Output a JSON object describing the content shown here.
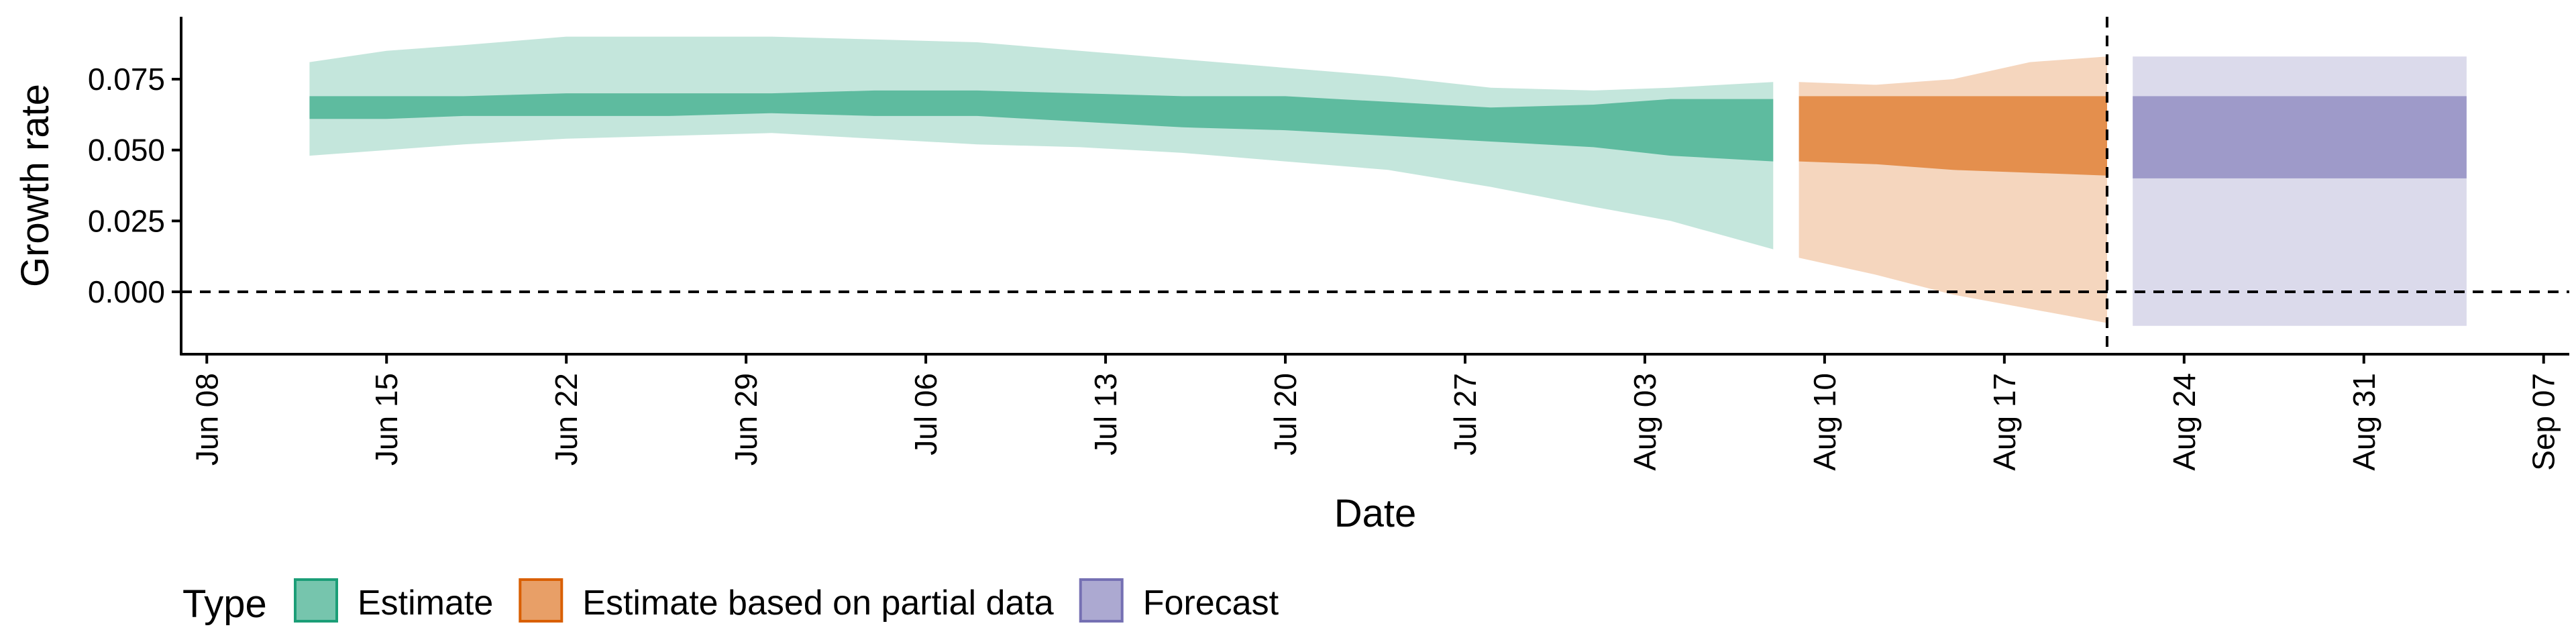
{
  "chart_data": {
    "type": "area",
    "title": "",
    "xlabel": "Date",
    "ylabel": "Growth rate",
    "x_type": "date",
    "xlim": [
      "2020-06-07",
      "2020-09-08"
    ],
    "ylim": [
      -0.022,
      0.097
    ],
    "x_ticks": [
      {
        "date": "2020-06-08",
        "label": "Jun 08"
      },
      {
        "date": "2020-06-15",
        "label": "Jun 15"
      },
      {
        "date": "2020-06-22",
        "label": "Jun 22"
      },
      {
        "date": "2020-06-29",
        "label": "Jun 29"
      },
      {
        "date": "2020-07-06",
        "label": "Jul 06"
      },
      {
        "date": "2020-07-13",
        "label": "Jul 13"
      },
      {
        "date": "2020-07-20",
        "label": "Jul 20"
      },
      {
        "date": "2020-07-27",
        "label": "Jul 27"
      },
      {
        "date": "2020-08-03",
        "label": "Aug 03"
      },
      {
        "date": "2020-08-10",
        "label": "Aug 10"
      },
      {
        "date": "2020-08-17",
        "label": "Aug 17"
      },
      {
        "date": "2020-08-24",
        "label": "Aug 24"
      },
      {
        "date": "2020-08-31",
        "label": "Aug 31"
      },
      {
        "date": "2020-09-07",
        "label": "Sep 07"
      }
    ],
    "y_ticks": [
      {
        "value": 0.0,
        "label": "0.000"
      },
      {
        "value": 0.025,
        "label": "0.025"
      },
      {
        "value": 0.05,
        "label": "0.050"
      },
      {
        "value": 0.075,
        "label": "0.075"
      }
    ],
    "reference_lines": [
      {
        "axis": "y",
        "value": 0.0,
        "style": "dashed"
      },
      {
        "axis": "x",
        "value": "2020-08-21",
        "style": "dashed"
      }
    ],
    "grid": false,
    "legend": {
      "position": "bottom-left",
      "title": "Type",
      "entries": [
        {
          "label": "Estimate",
          "color": "#1b9e77"
        },
        {
          "label": "Estimate based on partial data",
          "color": "#d95f02"
        },
        {
          "label": "Forecast",
          "color": "#7570b3"
        }
      ]
    },
    "series": [
      {
        "name": "Estimate",
        "fill_color": "#1b9e77",
        "outer_opacity": 0.26,
        "inner_opacity": 0.6,
        "points": [
          {
            "x": "2020-06-12",
            "lo90": 0.048,
            "lo50": 0.061,
            "hi50": 0.069,
            "hi90": 0.081
          },
          {
            "x": "2020-06-15",
            "lo90": 0.05,
            "lo50": 0.061,
            "hi50": 0.069,
            "hi90": 0.085
          },
          {
            "x": "2020-06-18",
            "lo90": 0.052,
            "lo50": 0.062,
            "hi50": 0.069,
            "hi90": 0.087
          },
          {
            "x": "2020-06-22",
            "lo90": 0.054,
            "lo50": 0.062,
            "hi50": 0.07,
            "hi90": 0.09
          },
          {
            "x": "2020-06-26",
            "lo90": 0.055,
            "lo50": 0.062,
            "hi50": 0.07,
            "hi90": 0.09
          },
          {
            "x": "2020-06-30",
            "lo90": 0.056,
            "lo50": 0.063,
            "hi50": 0.07,
            "hi90": 0.09
          },
          {
            "x": "2020-07-04",
            "lo90": 0.054,
            "lo50": 0.062,
            "hi50": 0.071,
            "hi90": 0.089
          },
          {
            "x": "2020-07-08",
            "lo90": 0.052,
            "lo50": 0.062,
            "hi50": 0.071,
            "hi90": 0.088
          },
          {
            "x": "2020-07-12",
            "lo90": 0.051,
            "lo50": 0.06,
            "hi50": 0.07,
            "hi90": 0.085
          },
          {
            "x": "2020-07-16",
            "lo90": 0.049,
            "lo50": 0.058,
            "hi50": 0.069,
            "hi90": 0.082
          },
          {
            "x": "2020-07-20",
            "lo90": 0.046,
            "lo50": 0.057,
            "hi50": 0.069,
            "hi90": 0.079
          },
          {
            "x": "2020-07-24",
            "lo90": 0.043,
            "lo50": 0.055,
            "hi50": 0.067,
            "hi90": 0.076
          },
          {
            "x": "2020-07-28",
            "lo90": 0.037,
            "lo50": 0.053,
            "hi50": 0.065,
            "hi90": 0.072
          },
          {
            "x": "2020-08-01",
            "lo90": 0.03,
            "lo50": 0.051,
            "hi50": 0.066,
            "hi90": 0.071
          },
          {
            "x": "2020-08-04",
            "lo90": 0.025,
            "lo50": 0.048,
            "hi50": 0.068,
            "hi90": 0.072
          },
          {
            "x": "2020-08-08",
            "lo90": 0.015,
            "lo50": 0.046,
            "hi50": 0.068,
            "hi90": 0.074
          }
        ]
      },
      {
        "name": "Estimate based on partial data",
        "fill_color": "#d95f02",
        "outer_opacity": 0.26,
        "inner_opacity": 0.6,
        "points": [
          {
            "x": "2020-08-09",
            "lo90": 0.012,
            "lo50": 0.046,
            "hi50": 0.069,
            "hi90": 0.074
          },
          {
            "x": "2020-08-12",
            "lo90": 0.006,
            "lo50": 0.045,
            "hi50": 0.069,
            "hi90": 0.073
          },
          {
            "x": "2020-08-15",
            "lo90": -0.001,
            "lo50": 0.043,
            "hi50": 0.069,
            "hi90": 0.075
          },
          {
            "x": "2020-08-18",
            "lo90": -0.006,
            "lo50": 0.042,
            "hi50": 0.069,
            "hi90": 0.081
          },
          {
            "x": "2020-08-21",
            "lo90": -0.011,
            "lo50": 0.041,
            "hi50": 0.069,
            "hi90": 0.083
          }
        ]
      },
      {
        "name": "Forecast",
        "fill_color": "#7570b3",
        "outer_opacity": 0.26,
        "inner_opacity": 0.6,
        "points": [
          {
            "x": "2020-08-22",
            "lo90": -0.012,
            "lo50": 0.04,
            "hi50": 0.069,
            "hi90": 0.083
          },
          {
            "x": "2020-09-04",
            "lo90": -0.012,
            "lo50": 0.04,
            "hi50": 0.069,
            "hi90": 0.083
          }
        ]
      }
    ]
  }
}
